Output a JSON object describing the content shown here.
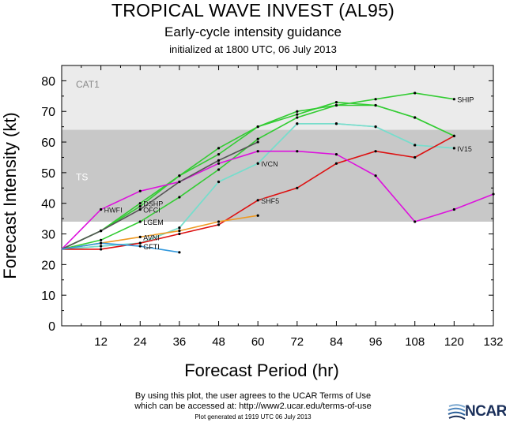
{
  "title": "TROPICAL WAVE INVEST (AL95)",
  "subtitle": "Early-cycle intensity guidance",
  "init_text": "initialized at 1800 UTC, 06 July 2013",
  "footer": {
    "line1": "By using this plot, the user agrees to the UCAR Terms of Use",
    "line2": "which can be accessed at: http://www2.ucar.edu/terms-of-use",
    "generated": "Plot generated at 1919 UTC   06 July 2013",
    "logo": "NCAR"
  },
  "chart_data": {
    "type": "line",
    "xlabel": "Forecast Period (hr)",
    "ylabel": "Forecast Intensity (kt)",
    "xlim": [
      0,
      132
    ],
    "ylim": [
      0,
      85
    ],
    "xticks": [
      12,
      24,
      36,
      48,
      60,
      72,
      84,
      96,
      108,
      120,
      132
    ],
    "yticks": [
      0,
      10,
      20,
      30,
      40,
      50,
      60,
      70,
      80
    ],
    "bands": [
      {
        "label": "TS",
        "from": 34,
        "to": 64,
        "color": "#c8c8c8"
      },
      {
        "label": "CAT1",
        "from": 64,
        "to": 85,
        "color": "#ebebeb"
      }
    ],
    "series": [
      {
        "name": "SHIP",
        "color": "#33cc33",
        "label_at": 114,
        "x": [
          0,
          12,
          24,
          36,
          48,
          60,
          72,
          84,
          96,
          108,
          120
        ],
        "y": [
          25,
          31,
          39,
          49,
          56,
          65,
          70,
          72,
          74,
          76,
          74
        ]
      },
      {
        "name": "DSHP",
        "color": "#33cc33",
        "label_at": 24,
        "x": [
          0,
          12,
          24,
          36,
          48,
          60,
          72,
          84,
          96,
          108,
          120
        ],
        "y": [
          25,
          31,
          40,
          49,
          58,
          65,
          69,
          73,
          72,
          68,
          62
        ]
      },
      {
        "name": "LGEM",
        "color": "#33cc33",
        "label_at": 24,
        "x": [
          0,
          12,
          24,
          36,
          48,
          60,
          72,
          84,
          96,
          108,
          120
        ],
        "y": [
          25,
          28,
          34,
          42,
          51,
          61,
          68,
          72,
          72,
          68,
          62
        ]
      },
      {
        "name": "IVCN",
        "color": "#77ddcc",
        "label_at": 60,
        "x": [
          0,
          12,
          24,
          36,
          48,
          60,
          72,
          84,
          96,
          108,
          120
        ],
        "y": [
          25,
          26,
          27,
          32,
          47,
          53,
          66,
          66,
          65,
          59,
          58
        ]
      },
      {
        "name": "IV15",
        "color": "#77ddcc",
        "label_at": 54,
        "x": [
          0,
          12,
          24,
          36,
          48,
          60,
          72,
          84,
          96,
          108,
          120
        ],
        "y": [
          25,
          26,
          27,
          32,
          47,
          53,
          66,
          66,
          65,
          59,
          58
        ]
      },
      {
        "name": "SHF5",
        "color": "#dd1111",
        "label_at": 60,
        "x": [
          0,
          12,
          24,
          36,
          48,
          60,
          72,
          84,
          96,
          108,
          120
        ],
        "y": [
          25,
          25,
          27,
          30,
          33,
          41,
          45,
          53,
          57,
          55,
          62
        ]
      },
      {
        "name": "HWFI",
        "color": "#dd11dd",
        "label_at": 12,
        "x": [
          0,
          12,
          24,
          36,
          48,
          60,
          72,
          84,
          96,
          108,
          120,
          132
        ],
        "y": [
          25,
          38,
          44,
          47,
          53,
          57,
          57,
          56,
          49,
          34,
          38,
          43
        ]
      },
      {
        "name": "OFCI",
        "color": "#555555",
        "label_at": 24,
        "x": [
          0,
          12,
          24,
          36,
          48,
          60
        ],
        "y": [
          25,
          31,
          38,
          47,
          54,
          60
        ]
      },
      {
        "name": "AVNI",
        "color": "#ee9922",
        "label_at": 24,
        "x": [
          0,
          12,
          24,
          36,
          48,
          60
        ],
        "y": [
          25,
          27,
          29,
          31,
          34,
          36
        ]
      },
      {
        "name": "GFTI",
        "color": "#3399dd",
        "label_at": 24,
        "x": [
          0,
          12,
          24,
          36
        ],
        "y": [
          25,
          27,
          26,
          24
        ]
      }
    ]
  }
}
